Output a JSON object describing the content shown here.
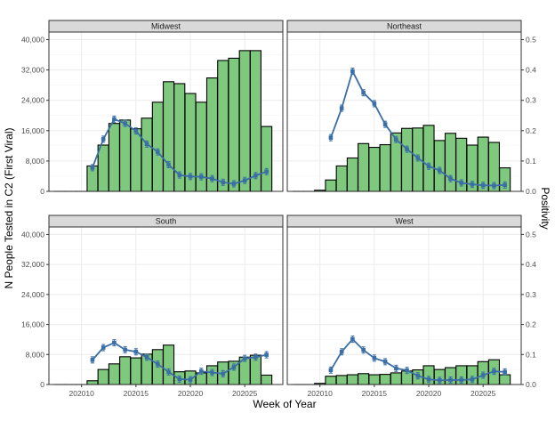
{
  "chart_data": {
    "type": "bar+line",
    "xlabel": "Week of Year",
    "ylabel": "N People Tested in C2 (First Viral)",
    "ylabel_right": "Positivity",
    "x_ticks": [
      202010,
      202015,
      202020,
      202025
    ],
    "y_ticks": [
      0,
      8000,
      16000,
      24000,
      32000,
      40000
    ],
    "y_tick_labels": [
      "0",
      "8,000",
      "16,000",
      "24,000",
      "32,000",
      "40,000"
    ],
    "y2_ticks": [
      0,
      0.1,
      0.2,
      0.3,
      0.4,
      0.5
    ],
    "y2_tick_labels": [
      "0.0",
      "0.1",
      "0.2",
      "0.3",
      "0.4",
      "0.5"
    ],
    "xlim": [
      202007,
      202028.5
    ],
    "ylim": [
      0,
      42000
    ],
    "y2lim": [
      0,
      0.525
    ],
    "grid": true,
    "bar_color": "#7fc97f",
    "line_color": "#3a6ea5",
    "weeks": [
      202008,
      202009,
      202010,
      202011,
      202012,
      202013,
      202014,
      202015,
      202016,
      202017,
      202018,
      202019,
      202020,
      202021,
      202022,
      202023,
      202024,
      202025,
      202026,
      202027
    ],
    "panels": [
      {
        "name": "Midwest",
        "tested": [
          0,
          0,
          0,
          6700,
          12200,
          17900,
          18800,
          16500,
          19300,
          23500,
          28900,
          28400,
          25800,
          23500,
          29900,
          34500,
          35100,
          37100,
          37100,
          17100
        ],
        "positivity": [
          null,
          null,
          null,
          0.078,
          0.172,
          0.238,
          0.224,
          0.199,
          0.156,
          0.13,
          0.088,
          0.054,
          0.049,
          0.048,
          0.042,
          0.03,
          0.025,
          0.036,
          0.052,
          0.065
        ]
      },
      {
        "name": "Northeast",
        "tested": [
          0,
          0,
          300,
          3000,
          6700,
          8800,
          12600,
          11600,
          12300,
          15400,
          16600,
          16700,
          17400,
          13400,
          15300,
          14000,
          12200,
          14300,
          12900,
          6200
        ],
        "positivity": [
          null,
          null,
          null,
          0.177,
          0.274,
          0.396,
          0.325,
          0.289,
          0.221,
          0.171,
          0.139,
          0.11,
          0.083,
          0.069,
          0.042,
          0.028,
          0.023,
          0.02,
          0.019,
          0.021
        ]
      },
      {
        "name": "South",
        "tested": [
          0,
          0,
          0,
          1000,
          4000,
          5500,
          7400,
          7100,
          8100,
          9300,
          10500,
          3400,
          3600,
          3100,
          5000,
          6000,
          6200,
          7300,
          7800,
          2500
        ],
        "positivity": [
          null,
          null,
          null,
          0.082,
          0.123,
          0.139,
          0.116,
          0.109,
          0.091,
          0.068,
          0.042,
          0.018,
          0.016,
          0.044,
          0.04,
          0.036,
          0.058,
          0.087,
          0.091,
          0.099
        ]
      },
      {
        "name": "West",
        "tested": [
          0,
          0,
          300,
          2200,
          2400,
          2600,
          2900,
          2600,
          2700,
          3100,
          3600,
          3900,
          5000,
          4000,
          4500,
          5000,
          5000,
          6100,
          6600,
          2600
        ],
        "positivity": [
          null,
          null,
          null,
          0.048,
          0.109,
          0.151,
          0.115,
          0.088,
          0.076,
          0.054,
          0.047,
          0.029,
          0.017,
          0.014,
          0.015,
          0.015,
          0.017,
          0.031,
          0.044,
          0.042
        ]
      }
    ]
  }
}
